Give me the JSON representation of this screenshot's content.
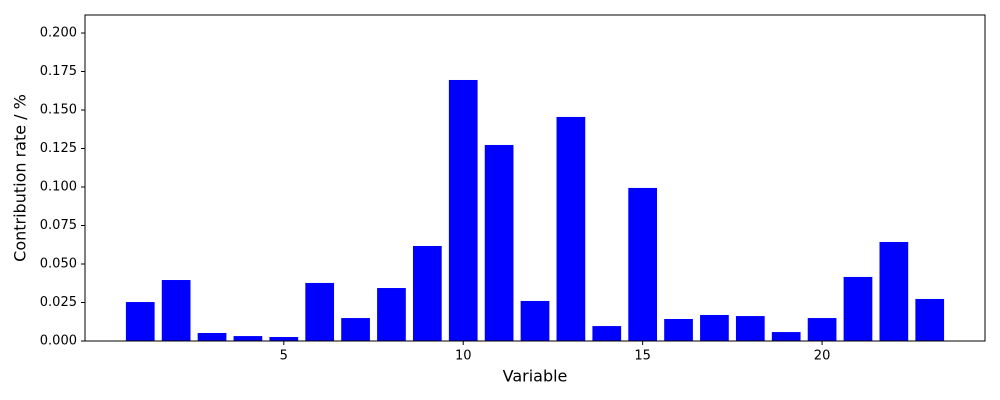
{
  "chart_data": {
    "type": "bar",
    "x_label": "Variable",
    "y_label": "Contribution rate / %",
    "x": [
      1,
      2,
      3,
      4,
      5,
      6,
      7,
      8,
      9,
      10,
      11,
      12,
      13,
      14,
      15,
      16,
      17,
      18,
      19,
      20,
      21,
      22,
      23
    ],
    "values": [
      0.0253,
      0.0396,
      0.0052,
      0.0032,
      0.0026,
      0.0377,
      0.0149,
      0.0344,
      0.0617,
      0.1695,
      0.1273,
      0.026,
      0.1455,
      0.0097,
      0.0994,
      0.0143,
      0.0169,
      0.0162,
      0.0058,
      0.0149,
      0.0416,
      0.0643,
      0.0273
    ],
    "color": "#0000ff",
    "xlim": [
      -0.54,
      24.54
    ],
    "xticks": [
      5,
      10,
      15,
      20
    ],
    "ylim": [
      0,
      0.2117
    ],
    "yticks": [
      {
        "value": 0,
        "label": "0.000"
      },
      {
        "value": 0.025,
        "label": "0.025"
      },
      {
        "value": 0.05,
        "label": "0.050"
      },
      {
        "value": 0.075,
        "label": "0.075"
      },
      {
        "value": 0.1,
        "label": "0.100"
      },
      {
        "value": 0.125,
        "label": "0.125"
      },
      {
        "value": 0.15,
        "label": "0.150"
      },
      {
        "value": 0.175,
        "label": "0.175"
      },
      {
        "value": 0.2,
        "label": "0.200"
      }
    ],
    "grid": false
  }
}
